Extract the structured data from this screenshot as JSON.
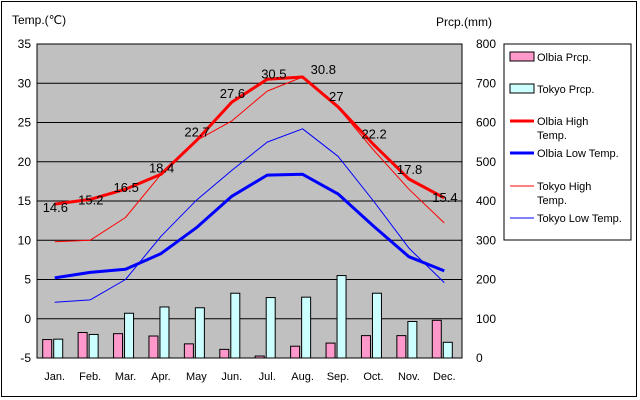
{
  "chart_data": {
    "type": "bar+line",
    "categories": [
      "Jan.",
      "Feb.",
      "Mar.",
      "Apr.",
      "May",
      "Jun.",
      "Jul.",
      "Aug.",
      "Sep.",
      "Oct.",
      "Nov.",
      "Dec."
    ],
    "left_axis": {
      "label": "Temp.(℃)",
      "min": -5,
      "max": 35,
      "ticks": [
        "35",
        "30",
        "25",
        "20",
        "15",
        "10",
        "5",
        "0",
        "-5"
      ]
    },
    "right_axis": {
      "label": "Prcp.(mm)",
      "min": 0,
      "max": 800,
      "ticks": [
        "800",
        "700",
        "600",
        "500",
        "400",
        "300",
        "200",
        "100",
        "0"
      ]
    },
    "series": [
      {
        "name": "Olbia Prcp.",
        "kind": "bar",
        "axis": "right",
        "color": "#ff99cc",
        "values": [
          47,
          65,
          62,
          56,
          36,
          22,
          5,
          30,
          38,
          57,
          57,
          96
        ]
      },
      {
        "name": "Tokyo Prcp.",
        "kind": "bar",
        "axis": "right",
        "color": "#ccffff",
        "values": [
          48,
          60,
          114,
          130,
          128,
          165,
          154,
          155,
          210,
          165,
          93,
          40
        ]
      },
      {
        "name": "Olbia High Temp.",
        "kind": "line",
        "axis": "left",
        "color": "#ff0000",
        "width": 3,
        "values": [
          14.6,
          15.2,
          16.5,
          18.4,
          22.7,
          27.6,
          30.5,
          30.8,
          27,
          22.2,
          17.8,
          15.4
        ],
        "labels": [
          "14.6",
          "15.2",
          "16.5",
          "18.4",
          "22.7",
          "27.6",
          "30.5",
          "30.8",
          "27",
          "22.2",
          "17.8",
          "15.4"
        ]
      },
      {
        "name": "Olbia Low Temp.",
        "kind": "line",
        "axis": "left",
        "color": "#0000ff",
        "width": 3,
        "values": [
          5.2,
          5.9,
          6.3,
          8.3,
          11.6,
          15.6,
          18.3,
          18.4,
          15.9,
          11.8,
          7.9,
          6.1
        ]
      },
      {
        "name": "Tokyo High Temp.",
        "kind": "line",
        "axis": "left",
        "color": "#ff0000",
        "width": 1,
        "values": [
          9.8,
          10.0,
          12.9,
          18.4,
          22.7,
          25.2,
          29.0,
          30.8,
          26.9,
          21.5,
          16.5,
          12.2
        ]
      },
      {
        "name": "Tokyo Low Temp.",
        "kind": "line",
        "axis": "left",
        "color": "#0000ff",
        "width": 1,
        "values": [
          2.1,
          2.4,
          5.0,
          10.5,
          15.1,
          18.9,
          22.5,
          24.2,
          20.7,
          15.0,
          9.0,
          4.6
        ]
      }
    ],
    "legend": [
      {
        "label": "Olbia Prcp.",
        "marker": "bar",
        "color": "#ff99cc"
      },
      {
        "label": "Tokyo Prcp.",
        "marker": "bar",
        "color": "#ccffff"
      },
      {
        "label": "Olbia High Temp.",
        "marker": "thick-line",
        "color": "#ff0000"
      },
      {
        "label": "Olbia Low Temp.",
        "marker": "thick-line",
        "color": "#0000ff"
      },
      {
        "label": "Tokyo High Temp.",
        "marker": "thin-line",
        "color": "#ff0000"
      },
      {
        "label": "Tokyo Low Temp.",
        "marker": "thin-line",
        "color": "#0000ff"
      }
    ],
    "plot_background": "#c0c0c0",
    "grid": true
  }
}
